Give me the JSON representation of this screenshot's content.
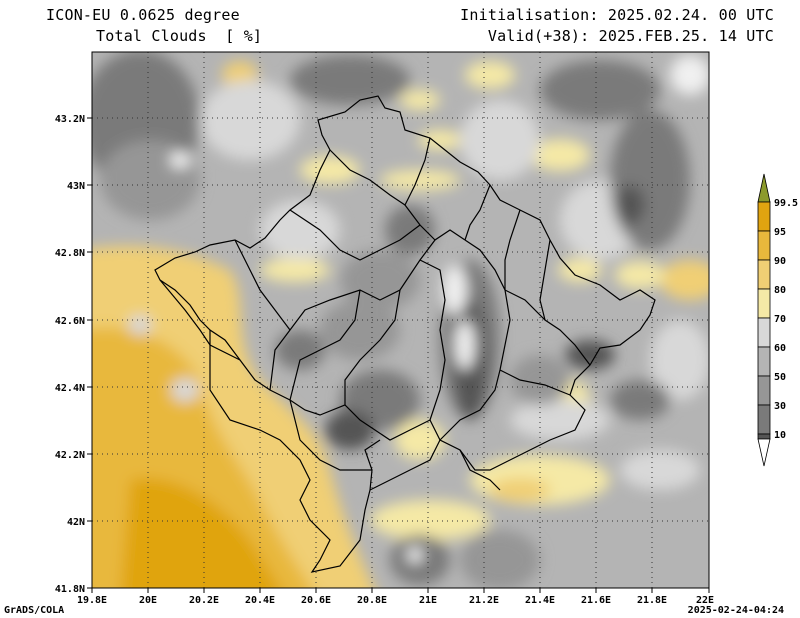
{
  "header": {
    "model": "ICON-EU 0.0625 degree",
    "variable": "Total Clouds  [ %]",
    "initialisation": "Initialisation: 2025.02.24. 00 UTC",
    "valid": "Valid(+38): 2025.FEB.25. 14 UTC"
  },
  "footer": {
    "left": "GrADS/COLA",
    "right": "2025-02-24-04:24"
  },
  "axes": {
    "lon_ticks": [
      "19.8E",
      "20E",
      "20.2E",
      "20.4E",
      "20.6E",
      "20.8E",
      "21E",
      "21.2E",
      "21.4E",
      "21.6E",
      "21.8E",
      "22E"
    ],
    "lat_ticks": [
      "43.2N",
      "43N",
      "42.8N",
      "42.6N",
      "42.4N",
      "42.2N",
      "42N",
      "41.8N"
    ],
    "lon_range": [
      19.8,
      22.0
    ],
    "lat_range": [
      41.8,
      43.4
    ],
    "grid": "dotted"
  },
  "legend": {
    "labels": [
      "99.5",
      "95",
      "90",
      "80",
      "70",
      "60",
      "50",
      "30",
      "10"
    ],
    "colors": [
      "#e0a410",
      "#e8b83c",
      "#f0cf74",
      "#f5e9a6",
      "#d8d8d8",
      "#b4b4b4",
      "#969696",
      "#7a7a7a",
      "#555555"
    ],
    "over_color": "#8c9a2c",
    "under_color": "#ffffff",
    "placement": "right"
  },
  "colors": {
    "orange": "#e8b83c",
    "light_orange": "#f0cf74",
    "pale_yellow": "#f5e9a6",
    "light_gray": "#d8d8d8",
    "mid_gray": "#b4b4b4",
    "gray": "#969696",
    "dark_gray": "#7a7a7a",
    "darkest_gray": "#555555"
  }
}
